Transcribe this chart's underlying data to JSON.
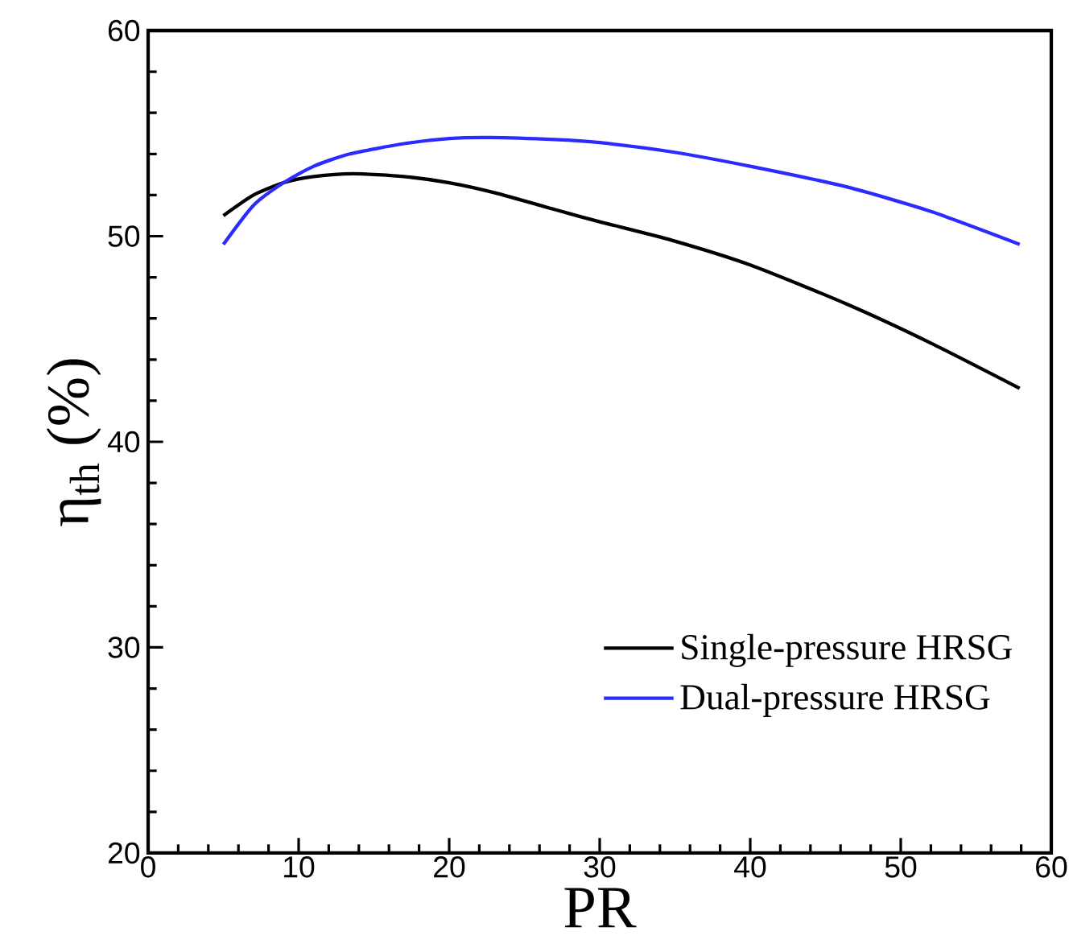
{
  "chart_data": {
    "type": "line",
    "xlabel": "PR",
    "ylabel": "η$_{th}$ (%)",
    "xlim": [
      0,
      60
    ],
    "ylim": [
      20,
      60
    ],
    "xticks": [
      0,
      10,
      20,
      30,
      40,
      50,
      60
    ],
    "yticks": [
      20,
      30,
      40,
      50,
      60
    ],
    "legend": "bottom right",
    "grid": false,
    "marker": "none",
    "line_style": "solid",
    "series": [
      {
        "name": "Single-pressure HRSG",
        "color": "#000000",
        "x": [
          5,
          7,
          9,
          11,
          13.6,
          17,
          20,
          23.1,
          27,
          30,
          34.8,
          40,
          46.4,
          52,
          57.9
        ],
        "values": [
          51.0,
          52.0,
          52.6,
          52.9,
          53.04,
          52.9,
          52.6,
          52.1,
          51.3,
          50.7,
          49.8,
          48.6,
          46.7,
          44.8,
          42.6
        ]
      },
      {
        "name": "Dual-pressure HRSG",
        "color": "#2b2bff",
        "x": [
          5,
          7,
          9,
          11,
          13.4,
          17,
          20,
          22.7,
          27,
          30,
          34.8,
          40,
          46.4,
          52,
          57.9
        ],
        "values": [
          49.6,
          51.5,
          52.6,
          53.4,
          54.0,
          54.5,
          54.75,
          54.8,
          54.7,
          54.55,
          54.1,
          53.4,
          52.4,
          51.2,
          49.6
        ]
      }
    ]
  }
}
